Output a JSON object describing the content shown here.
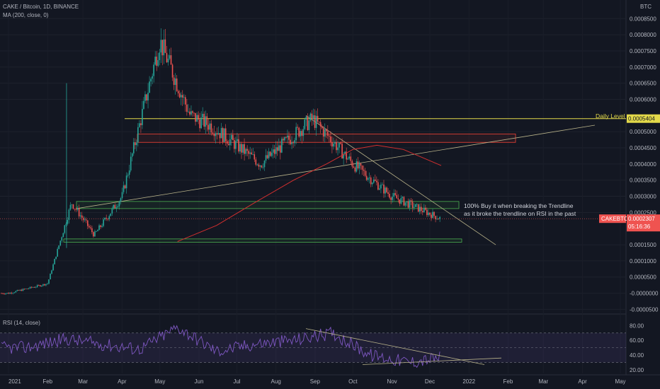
{
  "header": {
    "symbol_line": "CAKE / Bitcoin, 1D, BINANCE",
    "ma_line": "MA (200, close, 0)",
    "rsi_line": "RSI (14, close)",
    "currency_label": "BTC"
  },
  "price_panel": {
    "axis_labels": [
      "0.0008500",
      "0.0008000",
      "0.0007500",
      "0.0007000",
      "0.0006500",
      "0.0006000",
      "0.0005000",
      "0.0004500",
      "0.0004000",
      "0.0003500",
      "0.0003000",
      "0.0002500",
      "0.0001500",
      "0.0001000",
      "0.0000500",
      "-0.0000000",
      "-0.0000500"
    ],
    "axis_values": [
      0.00085,
      0.0008,
      0.00075,
      0.0007,
      0.00065,
      0.0006,
      0.0005,
      0.00045,
      0.0004,
      0.00035,
      0.0003,
      0.00025,
      0.00015,
      0.0001,
      5e-05,
      0.0,
      -5e-05
    ],
    "ylim": [
      -6e-05,
      0.00089
    ],
    "daily_level_label": "Daily Level",
    "daily_level_value": "0.0005404",
    "daily_level": 0.0005404,
    "last_price_tag": "CAKEBTC",
    "last_price": "0.0002307",
    "last_price_value": 0.0002307,
    "countdown": "05:16:36",
    "annotation_line1": "100% Buy it when breaking the Trendline",
    "annotation_line2": "as it broke the trendline on RSI in the past",
    "colors": {
      "up": "#26a69a",
      "down": "#ef5350",
      "ma": "#d32f2f",
      "level": "#e3d94a",
      "zone_red": "#f44336",
      "zone_green": "#4caf50",
      "trend": "#b9b38a"
    }
  },
  "rsi_panel": {
    "axis_labels": [
      "80.00",
      "60.00",
      "40.00",
      "20.00"
    ],
    "axis_values": [
      80,
      60,
      40,
      20
    ],
    "ylim": [
      15,
      92
    ],
    "band_upper": 70,
    "band_middle": 50,
    "band_lower": 30,
    "colors": {
      "line": "#7e57c2",
      "band": "rgba(126,87,194,0.12)"
    }
  },
  "time_axis": {
    "labels": [
      "2021",
      "Feb",
      "Mar",
      "Apr",
      "May",
      "Jun",
      "Jul",
      "Aug",
      "Sep",
      "Oct",
      "Nov",
      "Dec",
      "2022",
      "Feb",
      "Mar",
      "Apr",
      "May"
    ]
  },
  "chart_data": {
    "type": "line",
    "title": "CAKE / Bitcoin, 1D, BINANCE",
    "x": [
      "2021-01",
      "2021-02",
      "2021-03",
      "2021-04",
      "2021-05",
      "2021-06",
      "2021-07",
      "2021-08",
      "2021-09",
      "2021-10",
      "2021-11",
      "2021-12"
    ],
    "series": [
      {
        "name": "MA (200, close, 0)",
        "values": [
          null,
          null,
          null,
          null,
          null,
          0.00021,
          0.00028,
          0.00035,
          0.00042,
          0.000458,
          0.00043,
          null
        ]
      },
      {
        "name": "RSI (14, close)",
        "values": [
          50,
          62,
          55,
          48,
          78,
          45,
          55,
          60,
          70,
          40,
          30,
          38
        ]
      }
    ],
    "price_keypoints": [
      {
        "x": "2021-01-01",
        "y": 0.0
      },
      {
        "x": "2021-02-01",
        "y": 3e-05
      },
      {
        "x": "2021-02-20",
        "y": 0.00028
      },
      {
        "x": "2021-03-10",
        "y": 0.00018
      },
      {
        "x": "2021-04-01",
        "y": 0.0003
      },
      {
        "x": "2021-05-01",
        "y": 0.00078
      },
      {
        "x": "2021-05-25",
        "y": 0.00055
      },
      {
        "x": "2021-06-10",
        "y": 0.00052
      },
      {
        "x": "2021-07-20",
        "y": 0.0004
      },
      {
        "x": "2021-08-30",
        "y": 0.00054
      },
      {
        "x": "2021-10-01",
        "y": 0.0004
      },
      {
        "x": "2021-11-01",
        "y": 0.0003
      },
      {
        "x": "2021-12-10",
        "y": 0.00023
      }
    ],
    "ylim": [
      -6e-05,
      0.00089
    ]
  }
}
